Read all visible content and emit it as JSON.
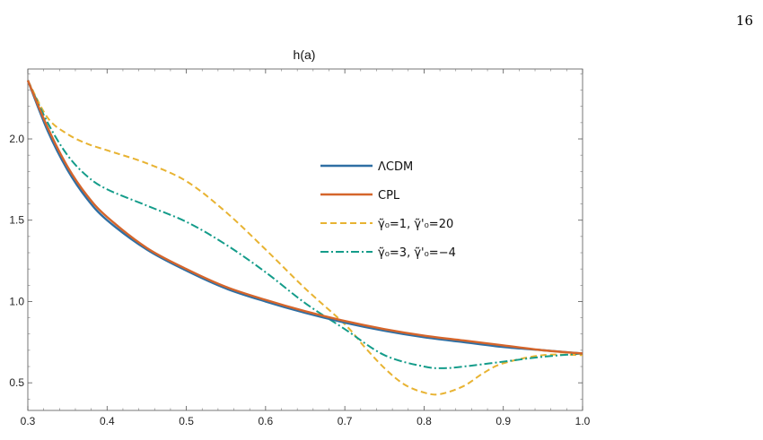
{
  "page": {
    "number": "16"
  },
  "chart_data": {
    "type": "line",
    "title": "h(a)",
    "xlabel": "",
    "ylabel": "",
    "xlim": [
      0.3,
      1.0
    ],
    "ylim": [
      0.33,
      2.43
    ],
    "xticks": [
      "0.3",
      "0.4",
      "0.5",
      "0.6",
      "0.7",
      "0.8",
      "0.9",
      "1.0"
    ],
    "yticks": [
      "0.5",
      "1.0",
      "1.5",
      "2.0"
    ],
    "legend_position": "center-right",
    "grid": false,
    "series": [
      {
        "name": "ΛCDM",
        "color": "#2f6fa3",
        "style": "solid",
        "x": [
          0.3,
          0.325,
          0.35,
          0.375,
          0.4,
          0.45,
          0.5,
          0.55,
          0.6,
          0.65,
          0.7,
          0.75,
          0.8,
          0.85,
          0.9,
          0.95,
          1.0
        ],
        "y": [
          2.36,
          2.05,
          1.81,
          1.63,
          1.5,
          1.32,
          1.19,
          1.08,
          1.0,
          0.93,
          0.87,
          0.82,
          0.78,
          0.75,
          0.72,
          0.7,
          0.68
        ]
      },
      {
        "name": "CPL",
        "color": "#d5652b",
        "style": "solid",
        "x": [
          0.3,
          0.325,
          0.35,
          0.375,
          0.4,
          0.45,
          0.5,
          0.55,
          0.6,
          0.65,
          0.7,
          0.75,
          0.8,
          0.85,
          0.9,
          0.95,
          1.0
        ],
        "y": [
          2.36,
          2.07,
          1.83,
          1.65,
          1.52,
          1.33,
          1.2,
          1.09,
          1.01,
          0.94,
          0.88,
          0.83,
          0.79,
          0.76,
          0.73,
          0.7,
          0.68
        ]
      },
      {
        "name": "γ̃₀=1, γ̃'₀=20",
        "color": "#e8b332",
        "style": "dashed",
        "x": [
          0.3,
          0.325,
          0.35,
          0.375,
          0.4,
          0.45,
          0.5,
          0.55,
          0.6,
          0.65,
          0.7,
          0.725,
          0.75,
          0.775,
          0.8,
          0.82,
          0.85,
          0.875,
          0.9,
          0.95,
          1.0
        ],
        "y": [
          2.36,
          2.13,
          2.03,
          1.97,
          1.93,
          1.85,
          1.74,
          1.55,
          1.32,
          1.08,
          0.86,
          0.72,
          0.59,
          0.49,
          0.44,
          0.43,
          0.48,
          0.56,
          0.62,
          0.67,
          0.67
        ]
      },
      {
        "name": "γ̃₀=3, γ̃'₀=−4",
        "color": "#149c8a",
        "style": "dashdot",
        "x": [
          0.3,
          0.325,
          0.35,
          0.375,
          0.4,
          0.45,
          0.5,
          0.55,
          0.6,
          0.65,
          0.7,
          0.75,
          0.8,
          0.825,
          0.85,
          0.9,
          0.95,
          1.0
        ],
        "y": [
          2.36,
          2.1,
          1.9,
          1.77,
          1.69,
          1.59,
          1.49,
          1.35,
          1.18,
          0.99,
          0.83,
          0.67,
          0.6,
          0.59,
          0.6,
          0.63,
          0.66,
          0.68
        ]
      }
    ]
  }
}
